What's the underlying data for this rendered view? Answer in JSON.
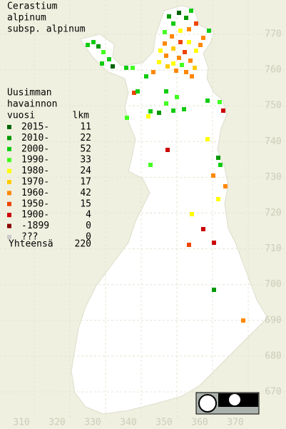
{
  "title_lines": [
    "Cerastium",
    "alpinum",
    "subsp. alpinum"
  ],
  "legend": {
    "header": [
      "Uusimman",
      "havainnon",
      "vuosi"
    ],
    "count_header": "lkm",
    "entries": [
      {
        "label": "2015-",
        "count": 11,
        "color": "#006400"
      },
      {
        "label": "2010-",
        "count": 22,
        "color": "#009900"
      },
      {
        "label": "2000-",
        "count": 52,
        "color": "#11cc11"
      },
      {
        "label": "1990-",
        "count": 33,
        "color": "#44ff22"
      },
      {
        "label": "1980-",
        "count": 24,
        "color": "#ffff00"
      },
      {
        "label": "1970-",
        "count": 17,
        "color": "#ffcc00"
      },
      {
        "label": "1960-",
        "count": 42,
        "color": "#ff8800"
      },
      {
        "label": "1950-",
        "count": 15,
        "color": "#ee4400"
      },
      {
        "label": "1900-",
        "count": 4,
        "color": "#cc0000"
      },
      {
        "label": "-1899",
        "count": 0,
        "color": "#880000"
      },
      {
        "label": "???",
        "count": 0,
        "color": "#cccccc"
      }
    ],
    "total": {
      "label": "Yhteensä",
      "count": 220
    }
  },
  "axes": {
    "x_labels": [
      310,
      320,
      330,
      340,
      350,
      360,
      370
    ],
    "y_labels": [
      770,
      760,
      750,
      740,
      730,
      720,
      710,
      700,
      690,
      680,
      670
    ]
  }
}
